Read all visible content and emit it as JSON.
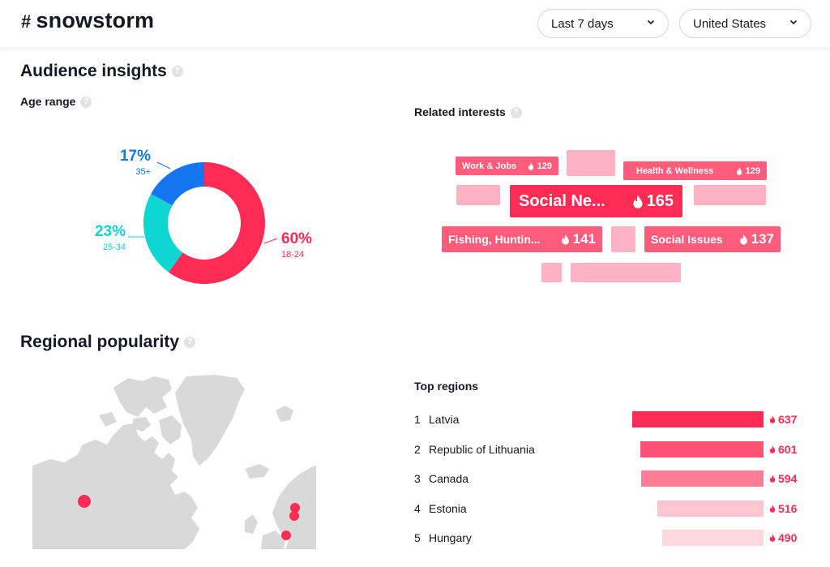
{
  "header": {
    "hash_symbol": "#",
    "hashtag": "snowstorm",
    "period_label": "Last 7 days",
    "country_label": "United States"
  },
  "audience": {
    "title": "Audience insights",
    "age_title": "Age range",
    "segments": [
      {
        "pct": "60%",
        "range": "18-24",
        "value": 60,
        "color": "#fe2c55"
      },
      {
        "pct": "23%",
        "range": "25-34",
        "value": 23,
        "color": "#0fd6d0"
      },
      {
        "pct": "17%",
        "range": "35+",
        "value": 17,
        "color": "#1476f0"
      }
    ]
  },
  "interests": {
    "title": "Related interests",
    "tags": [
      {
        "label": "Work & Jobs",
        "value": "129"
      },
      {
        "label": "Health & Wellness",
        "value": "129"
      },
      {
        "label": "Social Ne...",
        "value": "165"
      },
      {
        "label": "Fishing, Huntin...",
        "value": "141"
      },
      {
        "label": "Social Issues",
        "value": "137"
      }
    ]
  },
  "regional": {
    "title": "Regional popularity",
    "top_title": "Top regions",
    "regions": [
      {
        "rank": "1",
        "name": "Latvia",
        "value": "637",
        "level": 1.0,
        "color": "#fe2c55"
      },
      {
        "rank": "2",
        "name": "Republic of Lithuania",
        "value": "601",
        "level": 0.94,
        "color": "#fe5274"
      },
      {
        "rank": "3",
        "name": "Canada",
        "value": "594",
        "level": 0.93,
        "color": "#fe7d96"
      },
      {
        "rank": "4",
        "name": "Estonia",
        "value": "516",
        "level": 0.81,
        "color": "#ffc6d1"
      },
      {
        "rank": "5",
        "name": "Hungary",
        "value": "490",
        "level": 0.77,
        "color": "#ffd8e0"
      }
    ]
  },
  "colors": {
    "accent": "#fe2c55",
    "tag_strong": "#fe2c55",
    "tag_medium": "#fe5c7b",
    "tag_light": "#ffb2c1",
    "map_land": "#d9d9d9"
  }
}
